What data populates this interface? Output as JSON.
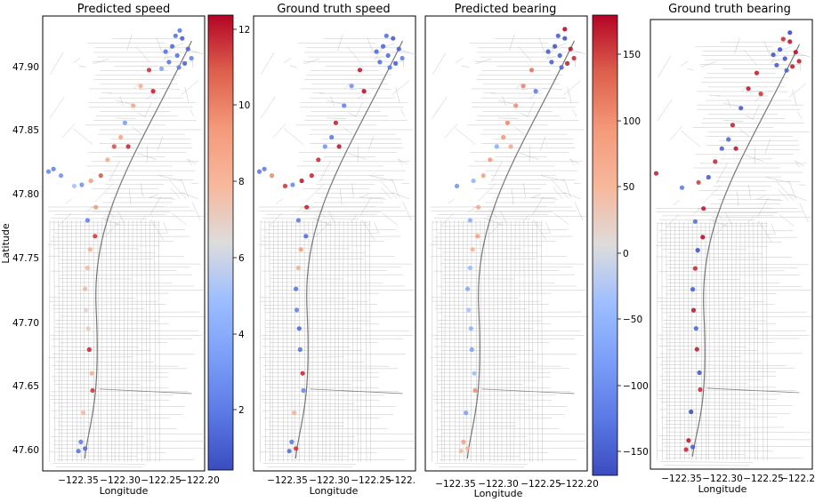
{
  "chart_data": [
    {
      "type": "scatter",
      "title": "Predicted speed",
      "xlabel": "Longitude",
      "ylabel": "Latitude",
      "xlim": [
        -122.39,
        -122.195
      ],
      "ylim": [
        47.59,
        47.935
      ],
      "x_ticks": [
        "−122.35",
        "−122.30",
        "−122.25",
        "−122.20"
      ],
      "y_ticks": [
        "47.60",
        "47.65",
        "47.70",
        "47.75",
        "47.80",
        "47.85",
        "47.90"
      ],
      "colorbar": {
        "cmap": "coolwarm",
        "range": [
          0.5,
          12.4
        ],
        "ticks": [
          "2",
          "4",
          "6",
          "8",
          "10",
          "12"
        ]
      },
      "points": [
        {
          "x": -122.234,
          "y": 47.912,
          "v": 1.5
        },
        {
          "x": -122.228,
          "y": 47.905,
          "v": 1.8
        },
        {
          "x": -122.222,
          "y": 47.918,
          "v": 1.2
        },
        {
          "x": -122.238,
          "y": 47.9,
          "v": 2.0
        },
        {
          "x": -122.215,
          "y": 47.91,
          "v": 1.4
        },
        {
          "x": -122.226,
          "y": 47.896,
          "v": 2.2
        },
        {
          "x": -122.242,
          "y": 47.908,
          "v": 1.7
        },
        {
          "x": -122.219,
          "y": 47.899,
          "v": 1.3
        },
        {
          "x": -122.23,
          "y": 47.92,
          "v": 1.9
        },
        {
          "x": -122.211,
          "y": 47.903,
          "v": 2.4
        },
        {
          "x": -122.247,
          "y": 47.895,
          "v": 3.8
        },
        {
          "x": -122.225,
          "y": 47.924,
          "v": 2.1
        },
        {
          "x": -122.262,
          "y": 47.894,
          "v": 11.6
        },
        {
          "x": -122.272,
          "y": 47.882,
          "v": 8.4
        },
        {
          "x": -122.257,
          "y": 47.878,
          "v": 11.9
        },
        {
          "x": -122.281,
          "y": 47.867,
          "v": 8.8
        },
        {
          "x": -122.291,
          "y": 47.854,
          "v": 3.4
        },
        {
          "x": -122.296,
          "y": 47.843,
          "v": 8.9
        },
        {
          "x": -122.287,
          "y": 47.836,
          "v": 11.8
        },
        {
          "x": -122.304,
          "y": 47.836,
          "v": 11.1
        },
        {
          "x": -122.312,
          "y": 47.826,
          "v": 8.6
        },
        {
          "x": -122.32,
          "y": 47.814,
          "v": 11.0
        },
        {
          "x": -122.332,
          "y": 47.81,
          "v": 9.2
        },
        {
          "x": -122.343,
          "y": 47.807,
          "v": 3.0
        },
        {
          "x": -122.352,
          "y": 47.806,
          "v": 5.2
        },
        {
          "x": -122.368,
          "y": 47.814,
          "v": 3.1
        },
        {
          "x": -122.383,
          "y": 47.817,
          "v": 2.6
        },
        {
          "x": -122.377,
          "y": 47.819,
          "v": 2.4
        },
        {
          "x": -122.326,
          "y": 47.79,
          "v": 9.4
        },
        {
          "x": -122.336,
          "y": 47.78,
          "v": 2.3
        },
        {
          "x": -122.327,
          "y": 47.768,
          "v": 11.5
        },
        {
          "x": -122.333,
          "y": 47.758,
          "v": 8.5
        },
        {
          "x": -122.336,
          "y": 47.744,
          "v": 7.8
        },
        {
          "x": -122.339,
          "y": 47.728,
          "v": 8.1
        },
        {
          "x": -122.338,
          "y": 47.712,
          "v": 6.8
        },
        {
          "x": -122.335,
          "y": 47.698,
          "v": 7.2
        },
        {
          "x": -122.334,
          "y": 47.682,
          "v": 11.8
        },
        {
          "x": -122.331,
          "y": 47.664,
          "v": 8.5
        },
        {
          "x": -122.33,
          "y": 47.651,
          "v": 11.5
        },
        {
          "x": -122.341,
          "y": 47.634,
          "v": 7.9
        },
        {
          "x": -122.344,
          "y": 47.612,
          "v": 2.2
        },
        {
          "x": -122.339,
          "y": 47.607,
          "v": 1.6
        },
        {
          "x": -122.347,
          "y": 47.605,
          "v": 1.9
        }
      ]
    },
    {
      "type": "scatter",
      "title": "Ground truth speed",
      "xlabel": "Longitude",
      "ylabel": "",
      "xlim": [
        -122.39,
        -122.195
      ],
      "ylim": [
        47.59,
        47.935
      ],
      "x_ticks": [
        "−122.35",
        "−122.30",
        "−122.25",
        "−122."
      ],
      "colorbar": {
        "cmap": "coolwarm",
        "range": [
          0.5,
          12.4
        ]
      },
      "points": [
        {
          "x": -122.234,
          "y": 47.912,
          "v": 1.4
        },
        {
          "x": -122.228,
          "y": 47.905,
          "v": 1.6
        },
        {
          "x": -122.222,
          "y": 47.918,
          "v": 1.1
        },
        {
          "x": -122.238,
          "y": 47.9,
          "v": 1.8
        },
        {
          "x": -122.215,
          "y": 47.91,
          "v": 1.3
        },
        {
          "x": -122.226,
          "y": 47.896,
          "v": 2.0
        },
        {
          "x": -122.242,
          "y": 47.908,
          "v": 1.5
        },
        {
          "x": -122.219,
          "y": 47.899,
          "v": 1.2
        },
        {
          "x": -122.23,
          "y": 47.92,
          "v": 1.7
        },
        {
          "x": -122.211,
          "y": 47.903,
          "v": 2.2
        },
        {
          "x": -122.262,
          "y": 47.894,
          "v": 12.0
        },
        {
          "x": -122.272,
          "y": 47.882,
          "v": 3.0
        },
        {
          "x": -122.257,
          "y": 47.878,
          "v": 12.2
        },
        {
          "x": -122.281,
          "y": 47.867,
          "v": 2.5
        },
        {
          "x": -122.291,
          "y": 47.854,
          "v": 11.9
        },
        {
          "x": -122.296,
          "y": 47.843,
          "v": 2.0
        },
        {
          "x": -122.287,
          "y": 47.836,
          "v": 12.1
        },
        {
          "x": -122.304,
          "y": 47.836,
          "v": 3.2
        },
        {
          "x": -122.312,
          "y": 47.826,
          "v": 11.7
        },
        {
          "x": -122.32,
          "y": 47.814,
          "v": 11.8
        },
        {
          "x": -122.332,
          "y": 47.81,
          "v": 12.0
        },
        {
          "x": -122.343,
          "y": 47.807,
          "v": 2.7
        },
        {
          "x": -122.352,
          "y": 47.806,
          "v": 11.5
        },
        {
          "x": -122.368,
          "y": 47.814,
          "v": 9.8
        },
        {
          "x": -122.383,
          "y": 47.817,
          "v": 2.0
        },
        {
          "x": -122.377,
          "y": 47.819,
          "v": 2.2
        },
        {
          "x": -122.326,
          "y": 47.79,
          "v": 11.9
        },
        {
          "x": -122.336,
          "y": 47.78,
          "v": 2.1
        },
        {
          "x": -122.327,
          "y": 47.768,
          "v": 1.6
        },
        {
          "x": -122.333,
          "y": 47.758,
          "v": 9.2
        },
        {
          "x": -122.336,
          "y": 47.744,
          "v": 8.3
        },
        {
          "x": -122.339,
          "y": 47.728,
          "v": 1.8
        },
        {
          "x": -122.338,
          "y": 47.712,
          "v": 2.4
        },
        {
          "x": -122.335,
          "y": 47.698,
          "v": 1.5
        },
        {
          "x": -122.334,
          "y": 47.682,
          "v": 1.9
        },
        {
          "x": -122.331,
          "y": 47.664,
          "v": 11.8
        },
        {
          "x": -122.33,
          "y": 47.651,
          "v": 2.6
        },
        {
          "x": -122.341,
          "y": 47.634,
          "v": 8.2
        },
        {
          "x": -122.344,
          "y": 47.612,
          "v": 2.0
        },
        {
          "x": -122.339,
          "y": 47.607,
          "v": 11.6
        },
        {
          "x": -122.347,
          "y": 47.605,
          "v": 1.7
        }
      ]
    },
    {
      "type": "scatter",
      "title": "Predicted bearing",
      "xlabel": "Longitude",
      "ylabel": "",
      "xlim": [
        -122.39,
        -122.195
      ],
      "ylim": [
        47.59,
        47.935
      ],
      "x_ticks": [
        "−122.35",
        "−122.30",
        "−122.25",
        "−122.20"
      ],
      "colorbar": {
        "cmap": "coolwarm",
        "range": [
          -168,
          180
        ],
        "ticks": [
          "−150",
          "−100",
          "−50",
          "0",
          "50",
          "100",
          "150"
        ]
      },
      "points": [
        {
          "x": -122.234,
          "y": 47.912,
          "v": -155
        },
        {
          "x": -122.228,
          "y": 47.905,
          "v": -150
        },
        {
          "x": -122.222,
          "y": 47.918,
          "v": -160
        },
        {
          "x": -122.238,
          "y": 47.9,
          "v": -145
        },
        {
          "x": -122.215,
          "y": 47.91,
          "v": 170
        },
        {
          "x": -122.226,
          "y": 47.896,
          "v": -140
        },
        {
          "x": -122.242,
          "y": 47.908,
          "v": -152
        },
        {
          "x": -122.219,
          "y": 47.899,
          "v": 165
        },
        {
          "x": -122.23,
          "y": 47.92,
          "v": -148
        },
        {
          "x": -122.211,
          "y": 47.903,
          "v": 160
        },
        {
          "x": -122.222,
          "y": 47.925,
          "v": 175
        },
        {
          "x": -122.262,
          "y": 47.894,
          "v": 120
        },
        {
          "x": -122.272,
          "y": 47.882,
          "v": 110
        },
        {
          "x": -122.257,
          "y": 47.878,
          "v": -120
        },
        {
          "x": -122.281,
          "y": 47.867,
          "v": 100
        },
        {
          "x": -122.291,
          "y": 47.854,
          "v": 105
        },
        {
          "x": -122.296,
          "y": 47.843,
          "v": 95
        },
        {
          "x": -122.287,
          "y": 47.836,
          "v": 70
        },
        {
          "x": -122.304,
          "y": 47.836,
          "v": -60
        },
        {
          "x": -122.312,
          "y": 47.826,
          "v": 90
        },
        {
          "x": -122.32,
          "y": 47.814,
          "v": 80
        },
        {
          "x": -122.332,
          "y": 47.81,
          "v": -50
        },
        {
          "x": -122.352,
          "y": 47.806,
          "v": -90
        },
        {
          "x": -122.326,
          "y": 47.79,
          "v": 70
        },
        {
          "x": -122.336,
          "y": 47.78,
          "v": -60
        },
        {
          "x": -122.327,
          "y": 47.768,
          "v": 85
        },
        {
          "x": -122.333,
          "y": 47.758,
          "v": 60
        },
        {
          "x": -122.336,
          "y": 47.744,
          "v": -40
        },
        {
          "x": -122.339,
          "y": 47.728,
          "v": -70
        },
        {
          "x": -122.338,
          "y": 47.712,
          "v": -30
        },
        {
          "x": -122.335,
          "y": 47.698,
          "v": -55
        },
        {
          "x": -122.334,
          "y": 47.682,
          "v": -75
        },
        {
          "x": -122.331,
          "y": 47.664,
          "v": -40
        },
        {
          "x": -122.33,
          "y": 47.651,
          "v": 100
        },
        {
          "x": -122.341,
          "y": 47.634,
          "v": -80
        },
        {
          "x": -122.344,
          "y": 47.612,
          "v": 85
        },
        {
          "x": -122.339,
          "y": 47.607,
          "v": 60
        },
        {
          "x": -122.347,
          "y": 47.605,
          "v": 45
        }
      ]
    },
    {
      "type": "scatter",
      "title": "Ground truth bearing",
      "xlabel": "Longitude",
      "ylabel": "",
      "xlim": [
        -122.39,
        -122.195
      ],
      "ylim": [
        47.59,
        47.935
      ],
      "x_ticks": [
        "−122.35",
        "−122.30",
        "−122.25",
        "−122.20"
      ],
      "colorbar": {
        "cmap": "coolwarm",
        "range": [
          -168,
          180
        ]
      },
      "points": [
        {
          "x": -122.234,
          "y": 47.912,
          "v": -160
        },
        {
          "x": -122.228,
          "y": 47.905,
          "v": -155
        },
        {
          "x": -122.222,
          "y": 47.918,
          "v": 170
        },
        {
          "x": -122.238,
          "y": 47.9,
          "v": -150
        },
        {
          "x": -122.215,
          "y": 47.91,
          "v": 175
        },
        {
          "x": -122.226,
          "y": 47.896,
          "v": -145
        },
        {
          "x": -122.242,
          "y": 47.908,
          "v": -158
        },
        {
          "x": -122.219,
          "y": 47.899,
          "v": 168
        },
        {
          "x": -122.23,
          "y": 47.92,
          "v": 160
        },
        {
          "x": -122.211,
          "y": 47.903,
          "v": 165
        },
        {
          "x": -122.222,
          "y": 47.925,
          "v": -170
        },
        {
          "x": -122.262,
          "y": 47.894,
          "v": 165
        },
        {
          "x": -122.272,
          "y": 47.882,
          "v": 170
        },
        {
          "x": -122.257,
          "y": 47.878,
          "v": 155
        },
        {
          "x": -122.281,
          "y": 47.867,
          "v": -150
        },
        {
          "x": -122.291,
          "y": 47.854,
          "v": 165
        },
        {
          "x": -122.296,
          "y": 47.843,
          "v": -140
        },
        {
          "x": -122.287,
          "y": 47.836,
          "v": 170
        },
        {
          "x": -122.304,
          "y": 47.836,
          "v": -145
        },
        {
          "x": -122.312,
          "y": 47.826,
          "v": 160
        },
        {
          "x": -122.32,
          "y": 47.814,
          "v": -150
        },
        {
          "x": -122.332,
          "y": 47.81,
          "v": 150
        },
        {
          "x": -122.352,
          "y": 47.806,
          "v": -120
        },
        {
          "x": -122.383,
          "y": 47.817,
          "v": 165
        },
        {
          "x": -122.326,
          "y": 47.79,
          "v": 170
        },
        {
          "x": -122.336,
          "y": 47.78,
          "v": -135
        },
        {
          "x": -122.327,
          "y": 47.768,
          "v": 175
        },
        {
          "x": -122.333,
          "y": 47.758,
          "v": -160
        },
        {
          "x": -122.336,
          "y": 47.744,
          "v": 160
        },
        {
          "x": -122.339,
          "y": 47.728,
          "v": -150
        },
        {
          "x": -122.338,
          "y": 47.712,
          "v": 170
        },
        {
          "x": -122.335,
          "y": 47.698,
          "v": -140
        },
        {
          "x": -122.334,
          "y": 47.682,
          "v": 165
        },
        {
          "x": -122.331,
          "y": 47.664,
          "v": -155
        },
        {
          "x": -122.33,
          "y": 47.651,
          "v": 160
        },
        {
          "x": -122.341,
          "y": 47.634,
          "v": -165
        },
        {
          "x": -122.344,
          "y": 47.612,
          "v": 170
        },
        {
          "x": -122.339,
          "y": 47.607,
          "v": -150
        },
        {
          "x": -122.347,
          "y": 47.605,
          "v": 160
        }
      ]
    }
  ]
}
